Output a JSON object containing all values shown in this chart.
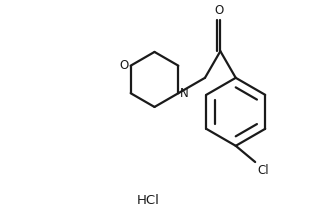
{
  "background_color": "#ffffff",
  "line_color": "#1a1a1a",
  "line_width": 1.6,
  "font_size_atoms": 8.5,
  "font_size_hcl": 9.5,
  "text_color": "#1a1a1a",
  "figsize": [
    3.29,
    2.21
  ],
  "dpi": 100,
  "xlim": [
    0,
    10
  ],
  "ylim": [
    0,
    6.7
  ]
}
